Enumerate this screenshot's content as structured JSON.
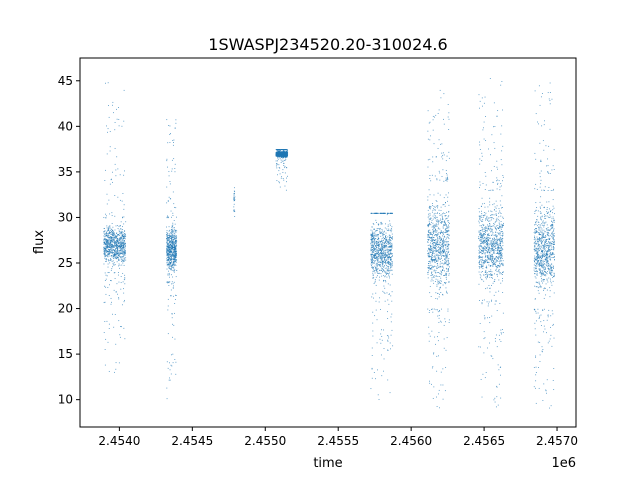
{
  "chart_data": {
    "type": "scatter",
    "title": "1SWASPJ234520.20-310024.6",
    "xlabel": "time",
    "ylabel": "flux",
    "x_offset_label": "1e6",
    "xlim": [
      2.45373,
      2.45713
    ],
    "ylim": [
      7.0,
      47.5
    ],
    "x_ticks": [
      2.454,
      2.4545,
      2.455,
      2.4555,
      2.456,
      2.4565,
      2.457
    ],
    "x_tick_labels": [
      "2.4540",
      "2.4545",
      "2.4550",
      "2.4555",
      "2.4560",
      "2.4565",
      "2.4570"
    ],
    "y_ticks": [
      10,
      15,
      20,
      25,
      30,
      35,
      40,
      45
    ],
    "y_tick_labels": [
      "10",
      "15",
      "20",
      "25",
      "30",
      "35",
      "40",
      "45"
    ],
    "grid": false,
    "marker_color": "#1f77b4",
    "clusters": [
      {
        "x_start": 2.45389,
        "x_end": 2.45404,
        "core": [
          24,
          30
        ],
        "low": 13,
        "high": 45
      },
      {
        "x_start": 2.45432,
        "x_end": 2.45439,
        "core": [
          23,
          30
        ],
        "low": 10,
        "high": 41
      },
      {
        "x_start": 2.45478,
        "x_end": 2.45479,
        "core": [
          29.5,
          34.5
        ],
        "low": 29.5,
        "high": 34.5
      },
      {
        "x_start": 2.45507,
        "x_end": 2.45515,
        "core": [
          36.5,
          37.5
        ],
        "low": 33,
        "high": 37.5
      },
      {
        "x_start": 2.45572,
        "x_end": 2.45587,
        "core": [
          22,
          30.5
        ],
        "low": 10,
        "high": 30.5
      },
      {
        "x_start": 2.45611,
        "x_end": 2.45626,
        "core": [
          20,
          34
        ],
        "low": 9,
        "high": 44
      },
      {
        "x_start": 2.45646,
        "x_end": 2.45663,
        "core": [
          21,
          33
        ],
        "low": 9,
        "high": 45.5
      },
      {
        "x_start": 2.45684,
        "x_end": 2.45698,
        "core": [
          20,
          33
        ],
        "low": 9,
        "high": 45.5
      }
    ]
  }
}
